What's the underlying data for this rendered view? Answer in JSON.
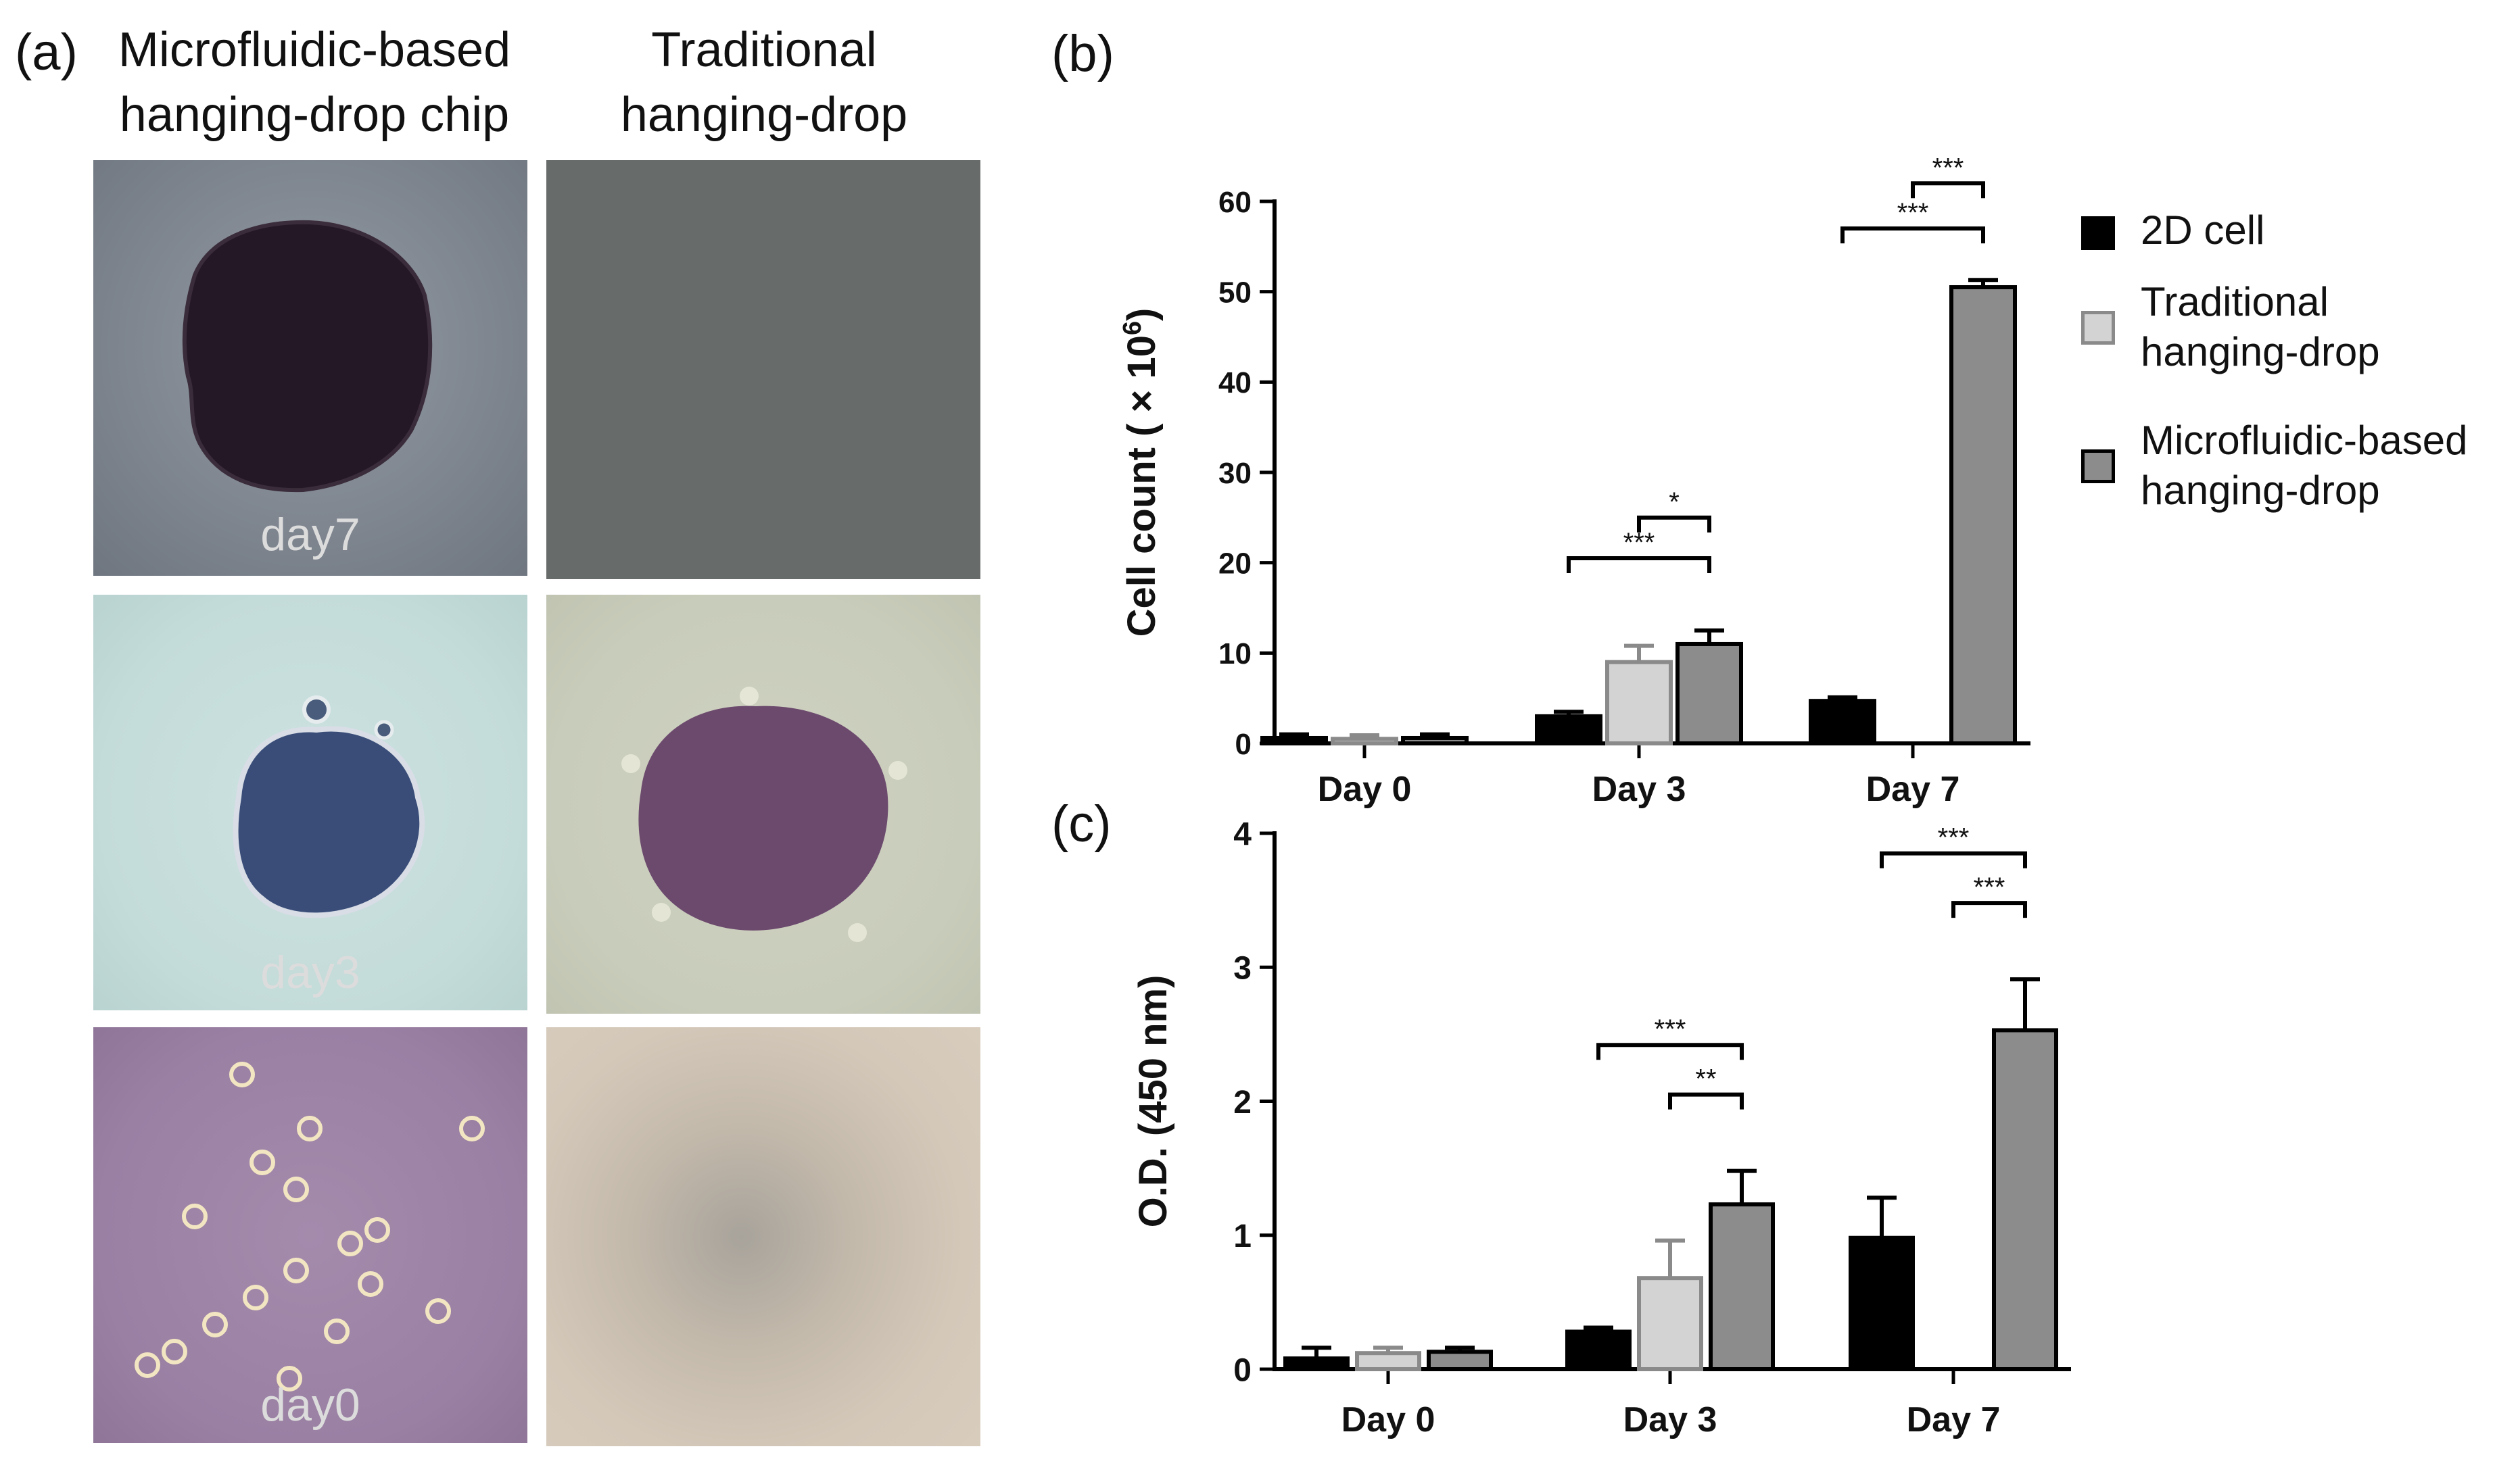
{
  "panel_a": {
    "letter": "(a)",
    "col1_title_line1": "Microfluidic-based",
    "col1_title_line2": "hanging-drop chip",
    "col2_title_line1": "Traditional",
    "col2_title_line2": "hanging-drop",
    "day_labels": [
      "day7",
      "day3",
      "day0"
    ]
  },
  "legend": {
    "items": [
      {
        "line1": "2D cell",
        "line2": "",
        "color": "#000000"
      },
      {
        "line1": "Traditional",
        "line2": "hanging-drop",
        "color": "#d3d3d3"
      },
      {
        "line1": "Microfluidic-based",
        "line2": "hanging-drop",
        "color": "#8c8c8c"
      }
    ]
  },
  "chart_data": [
    {
      "panel": "(b)",
      "type": "bar",
      "categories": [
        "Day 0",
        "Day 3",
        "Day 7"
      ],
      "ylabel": "Cell count ( × 10",
      "ylabel_sup": "6",
      "ylabel_end": ")",
      "ylim": [
        0,
        60
      ],
      "yticks": [
        0,
        10,
        20,
        30,
        40,
        50,
        60
      ],
      "series": [
        {
          "name": "2D cell",
          "values": [
            0.6,
            3.0,
            4.7
          ],
          "errors": [
            0.4,
            0.5,
            0.4
          ]
        },
        {
          "name": "Traditional hanging-drop",
          "values": [
            0.5,
            9.0,
            0
          ],
          "errors": [
            0.4,
            1.8,
            0
          ]
        },
        {
          "name": "Microfluidic-based hanging-drop",
          "values": [
            0.6,
            11.0,
            50.5
          ],
          "errors": [
            0.4,
            1.5,
            0.8
          ]
        }
      ],
      "annotations": [
        {
          "category": 1,
          "from_series": 1,
          "to_series": 2,
          "label": "*",
          "level": 25
        },
        {
          "category": 1,
          "from_series": 0,
          "to_series": 2,
          "label": "***",
          "level": 20.5
        },
        {
          "category": 2,
          "from_series": 1,
          "to_series": 2,
          "label": "***",
          "level": 62
        },
        {
          "category": 2,
          "from_series": 0,
          "to_series": 2,
          "label": "***",
          "level": 57
        }
      ]
    },
    {
      "panel": "(c)",
      "type": "bar",
      "categories": [
        "Day 0",
        "Day 3",
        "Day 7"
      ],
      "ylabel": "O.D. (450 nm)",
      "ylim": [
        0,
        4
      ],
      "yticks": [
        0,
        1,
        2,
        3,
        4
      ],
      "series": [
        {
          "name": "2D cell",
          "values": [
            0.08,
            0.28,
            0.98
          ],
          "errors": [
            0.08,
            0.03,
            0.3
          ]
        },
        {
          "name": "Traditional hanging-drop",
          "values": [
            0.12,
            0.68,
            0
          ],
          "errors": [
            0.04,
            0.28,
            0
          ]
        },
        {
          "name": "Microfluidic-based hanging-drop",
          "values": [
            0.13,
            1.23,
            2.53
          ],
          "errors": [
            0.03,
            0.25,
            0.38
          ]
        }
      ],
      "annotations": [
        {
          "category": 1,
          "from_series": 1,
          "to_series": 2,
          "label": "**",
          "level": 2.05
        },
        {
          "category": 1,
          "from_series": 0,
          "to_series": 2,
          "label": "***",
          "level": 2.42
        },
        {
          "category": 2,
          "from_series": 1,
          "to_series": 2,
          "label": "***",
          "level": 3.48
        },
        {
          "category": 2,
          "from_series": 0,
          "to_series": 2,
          "label": "***",
          "level": 3.85
        }
      ]
    }
  ]
}
